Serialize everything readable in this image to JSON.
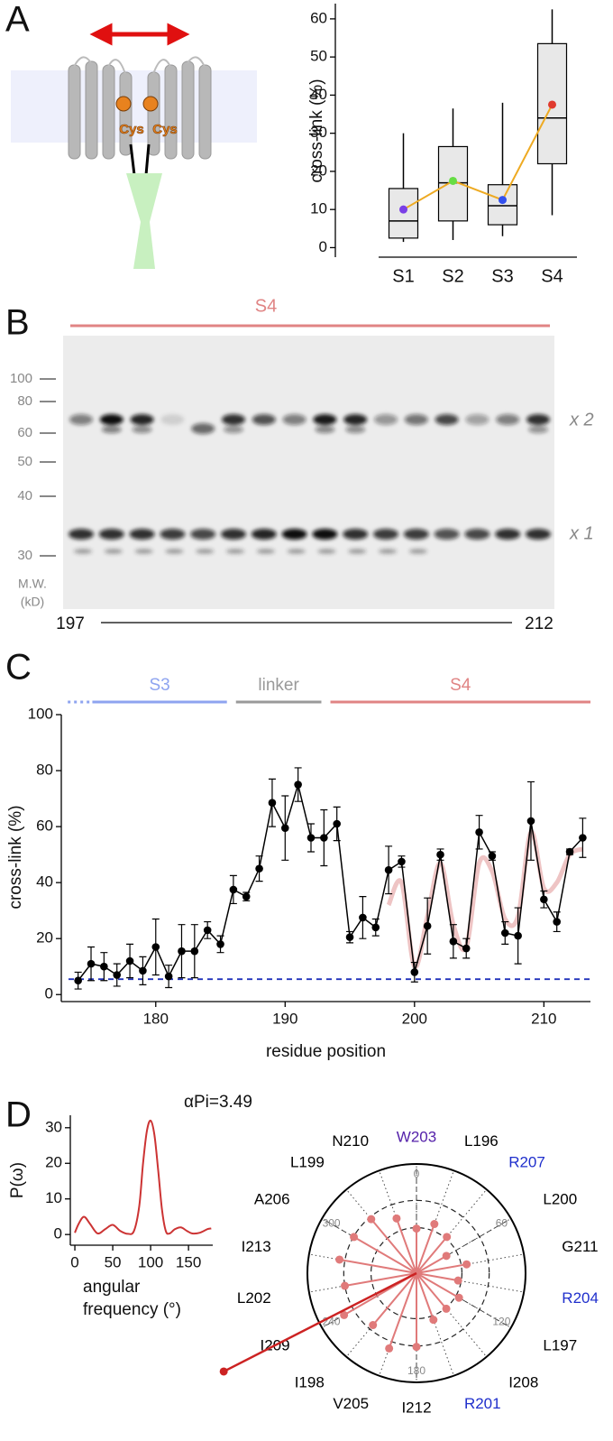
{
  "panel_labels": [
    "A",
    "B",
    "C",
    "D"
  ],
  "schematic": {
    "labels": [
      "Cys",
      "Cys"
    ]
  },
  "gel": {
    "title": "S4",
    "mw_ticks": [
      100,
      80,
      60,
      50,
      40,
      30
    ],
    "mw_unit": [
      "M.W.",
      "(kD)"
    ],
    "lanes_from": "197",
    "lanes_to": "212",
    "band_labels": [
      "x 2",
      "x 1"
    ]
  },
  "chart_data": [
    {
      "type": "box",
      "ylabel": "cross-link (%)",
      "categories": [
        "S1",
        "S2",
        "S3",
        "S4"
      ],
      "whislo": [
        1.5,
        2,
        3,
        8.5
      ],
      "q1": [
        2.5,
        7,
        6,
        22
      ],
      "med": [
        7,
        17,
        11,
        34
      ],
      "q3": [
        15.5,
        26.5,
        16.5,
        53.5
      ],
      "whishi": [
        30,
        36.5,
        38,
        62.5
      ],
      "means": [
        10,
        17.5,
        12.5,
        37.5
      ],
      "mean_colors": [
        "#7a3fe6",
        "#66dd44",
        "#3350ee",
        "#e03a2e"
      ],
      "mean_line_color": "#eeaa22",
      "box_color": "#e8e8e8",
      "ylim": [
        -2.5,
        64
      ],
      "yticks": [
        0,
        10,
        20,
        30,
        40,
        50,
        60
      ]
    },
    {
      "type": "line",
      "xlabel": "residue position",
      "ylabel": "cross-link (%)",
      "x": [
        174,
        175,
        176,
        177,
        178,
        179,
        180,
        181,
        182,
        183,
        184,
        185,
        186,
        187,
        188,
        189,
        190,
        191,
        192,
        193,
        194,
        195,
        196,
        197,
        198,
        199,
        200,
        201,
        202,
        203,
        204,
        205,
        206,
        207,
        208,
        209,
        210,
        211,
        212,
        213
      ],
      "values": [
        5,
        11,
        10,
        7,
        12,
        8.5,
        17,
        6.5,
        15.5,
        15.5,
        23,
        18,
        37.5,
        35,
        45,
        68.5,
        59.5,
        75,
        56,
        56,
        61,
        20.5,
        27.5,
        24,
        44.5,
        47.5,
        8,
        24.5,
        50,
        19,
        16.5,
        58,
        49.5,
        22,
        21,
        62,
        34,
        26,
        51,
        56
      ],
      "errors": [
        3,
        6,
        5,
        4,
        6,
        5,
        10,
        4,
        9.5,
        9.5,
        3,
        3,
        5,
        1.5,
        4.5,
        8.5,
        11.5,
        6,
        5,
        10,
        6,
        2,
        7.5,
        3,
        8.5,
        2,
        3.5,
        10,
        2,
        6,
        3.5,
        6,
        1.5,
        4,
        10,
        14,
        3,
        3.5,
        1,
        7
      ],
      "color": "#000000",
      "fit": {
        "x": [
          198,
          199,
          200,
          201,
          202,
          203,
          204,
          205,
          206,
          207,
          208,
          209,
          210,
          211,
          212,
          213
        ],
        "values": [
          32,
          40,
          10,
          28,
          47,
          25,
          17,
          47,
          44,
          27,
          28,
          58,
          38,
          40,
          50,
          52
        ],
        "color": "#eec4c4"
      },
      "hline": {
        "value": 5.5,
        "color": "#2233bb"
      },
      "regions": [
        {
          "label": "S3",
          "start": 175.1,
          "end": 185.5,
          "dotted_from": 173.2,
          "color": "#8ea4f0"
        },
        {
          "label": "linker",
          "start": 186.2,
          "end": 192.8,
          "color": "#999999"
        },
        {
          "label": "S4",
          "start": 193.5,
          "end": 213.6,
          "color": "#e08484"
        }
      ],
      "xlim": [
        172.7,
        213.6
      ],
      "ylim": [
        -2.5,
        100
      ],
      "xticks": [
        180,
        190,
        200,
        210
      ],
      "yticks": [
        0,
        20,
        40,
        60,
        80,
        100
      ]
    },
    {
      "type": "line",
      "title": "αPi=3.49",
      "ylabel": "P(ω)",
      "xlabel": [
        "angular",
        "frequency (°)"
      ],
      "x": [
        0,
        5,
        12,
        20,
        30,
        40,
        50,
        60,
        70,
        78,
        85,
        90,
        95,
        100,
        105,
        110,
        115,
        120,
        125,
        132,
        140,
        148,
        155,
        165,
        175,
        180
      ],
      "values": [
        0.5,
        3,
        5,
        3,
        0.3,
        1.5,
        2.7,
        1,
        0.2,
        1,
        8,
        20,
        29,
        32,
        28,
        18,
        7,
        1,
        0.3,
        1.5,
        2,
        1,
        0.3,
        0.5,
        1.5,
        1.7
      ],
      "color": "#cc3333",
      "xlim": [
        -6,
        182
      ],
      "ylim": [
        -3,
        33.5
      ],
      "xticks": [
        0,
        50,
        100,
        150
      ],
      "yticks": [
        0,
        10,
        20,
        30
      ]
    },
    {
      "type": "polar",
      "labels": [
        "L196",
        "L197",
        "I198",
        "L199",
        "L200",
        "R201",
        "L202",
        "W203",
        "R204",
        "V205",
        "A206",
        "R207",
        "I208",
        "I209",
        "N210",
        "G211",
        "I212",
        "I213"
      ],
      "angles": [
        20,
        120,
        220,
        320,
        60,
        160,
        260,
        0,
        100,
        200,
        300,
        40,
        140,
        240,
        340,
        80,
        180,
        280
      ],
      "values": [
        27.5,
        24,
        44.5,
        47.5,
        8,
        24.5,
        50,
        19,
        16.5,
        58,
        49.5,
        22,
        21,
        62,
        34,
        26,
        51,
        56
      ],
      "label_colors": [
        "#000000",
        "#000000",
        "#000000",
        "#000000",
        "#000000",
        "#1f2fcc",
        "#000000",
        "#5522aa",
        "#1f2fcc",
        "#000000",
        "#000000",
        "#1f2fcc",
        "#000000",
        "#000000",
        "#000000",
        "#000000",
        "#000000",
        "#000000"
      ],
      "color": "#e07a7a",
      "rlim": [
        -30,
        90
      ],
      "rticks": [
        20,
        50
      ],
      "angle_ticks": [
        0,
        60,
        120,
        180,
        240,
        300
      ],
      "resultant": {
        "angle": 243,
        "length": 208,
        "color": "#cc2222"
      }
    }
  ]
}
